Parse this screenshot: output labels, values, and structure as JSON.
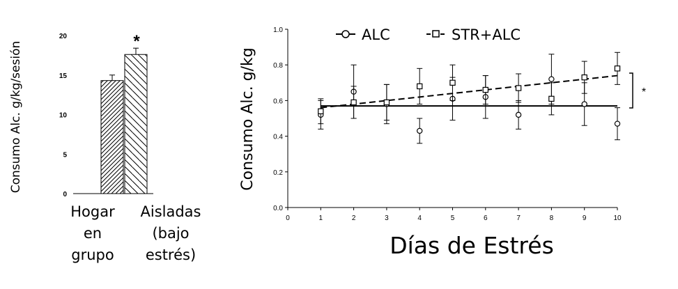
{
  "chart_data": [
    {
      "type": "bar",
      "title": "",
      "ylabel": "Consumo Alc. g/kg/sesión",
      "xlabel": "",
      "ylim": [
        0,
        20
      ],
      "yticks": [
        "0",
        "5",
        "10",
        "15",
        "20"
      ],
      "categories": [
        "Hogar en grupo",
        "Aisladas (bajo estrés)"
      ],
      "category_lines": [
        [
          "Hogar",
          "en",
          "grupo"
        ],
        [
          "Aisladas",
          "(bajo",
          "estrés)"
        ]
      ],
      "values": [
        14.3,
        17.6
      ],
      "errors": [
        0.7,
        0.8
      ],
      "significance": "*",
      "grid": false
    },
    {
      "type": "line",
      "title": "",
      "ylabel": "Consumo Alc. g/kg",
      "xlabel": "Días de Estrés",
      "xlim": [
        0,
        10
      ],
      "ylim": [
        0.0,
        1.0
      ],
      "xticks": [
        "0",
        "1",
        "2",
        "3",
        "4",
        "5",
        "6",
        "7",
        "8",
        "9",
        "10"
      ],
      "yticks": [
        "0.0",
        "0.2",
        "0.4",
        "0.6",
        "0.8",
        "1.0"
      ],
      "legend_position": "top",
      "grid": false,
      "significance": "*",
      "series": [
        {
          "name": "ALC",
          "marker": "circle",
          "line_style": "solid",
          "x": [
            1,
            2,
            3,
            4,
            5,
            6,
            7,
            8,
            9,
            10
          ],
          "y": [
            0.52,
            0.65,
            0.58,
            0.43,
            0.61,
            0.62,
            0.52,
            0.72,
            0.58,
            0.47
          ],
          "error": [
            0.08,
            0.15,
            0.11,
            0.07,
            0.12,
            0.12,
            0.08,
            0.14,
            0.12,
            0.09
          ],
          "trend": [
            0.57,
            0.57
          ]
        },
        {
          "name": "STR+ALC",
          "marker": "square",
          "line_style": "dashed",
          "x": [
            1,
            2,
            3,
            4,
            5,
            6,
            7,
            8,
            9,
            10
          ],
          "y": [
            0.54,
            0.59,
            0.59,
            0.68,
            0.7,
            0.66,
            0.67,
            0.61,
            0.73,
            0.78
          ],
          "error": [
            0.07,
            0.09,
            0.1,
            0.1,
            0.1,
            0.08,
            0.08,
            0.09,
            0.09,
            0.09
          ],
          "trend": [
            0.56,
            0.74
          ]
        }
      ]
    }
  ]
}
